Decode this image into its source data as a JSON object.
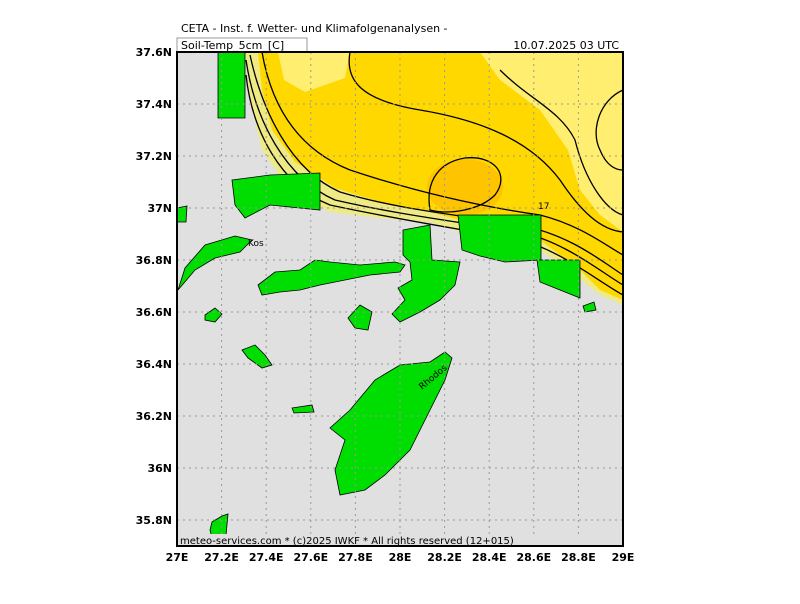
{
  "header": {
    "source": "CETA - Inst. f. Wetter- und Klimafolgenanalysen -",
    "variable": "Soil-Temp_5cm_[C]",
    "datetime": "10.07.2025 03 UTC"
  },
  "footer": "meteo-services.com * (c)2025 IWKF * All rights reserved (12+015)",
  "x_labels": [
    "27E",
    "27.2E",
    "27.4E",
    "27.6E",
    "27.8E",
    "28E",
    "28.2E",
    "28.4E",
    "28.6E",
    "28.8E",
    "29E"
  ],
  "y_labels": [
    "37.6N",
    "37.4N",
    "37.2N",
    "37N",
    "36.8N",
    "36.6N",
    "36.4N",
    "36.2N",
    "36N",
    "35.8N"
  ],
  "places": [
    "Kos",
    "Rhodos"
  ],
  "contour_labels": [
    "17"
  ]
}
